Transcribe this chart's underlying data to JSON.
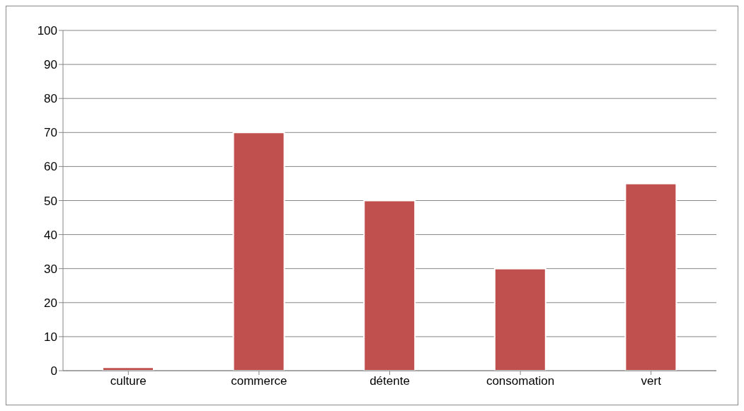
{
  "chart_data": {
    "type": "bar",
    "categories": [
      "culture",
      "commerce",
      "détente",
      "consomation",
      "vert"
    ],
    "values": [
      1,
      70,
      50,
      30,
      55
    ],
    "color": "#c0504d",
    "ylim": [
      0,
      100
    ],
    "yticks": [
      0,
      10,
      20,
      30,
      40,
      50,
      60,
      70,
      80,
      90,
      100
    ],
    "grid": "y"
  }
}
